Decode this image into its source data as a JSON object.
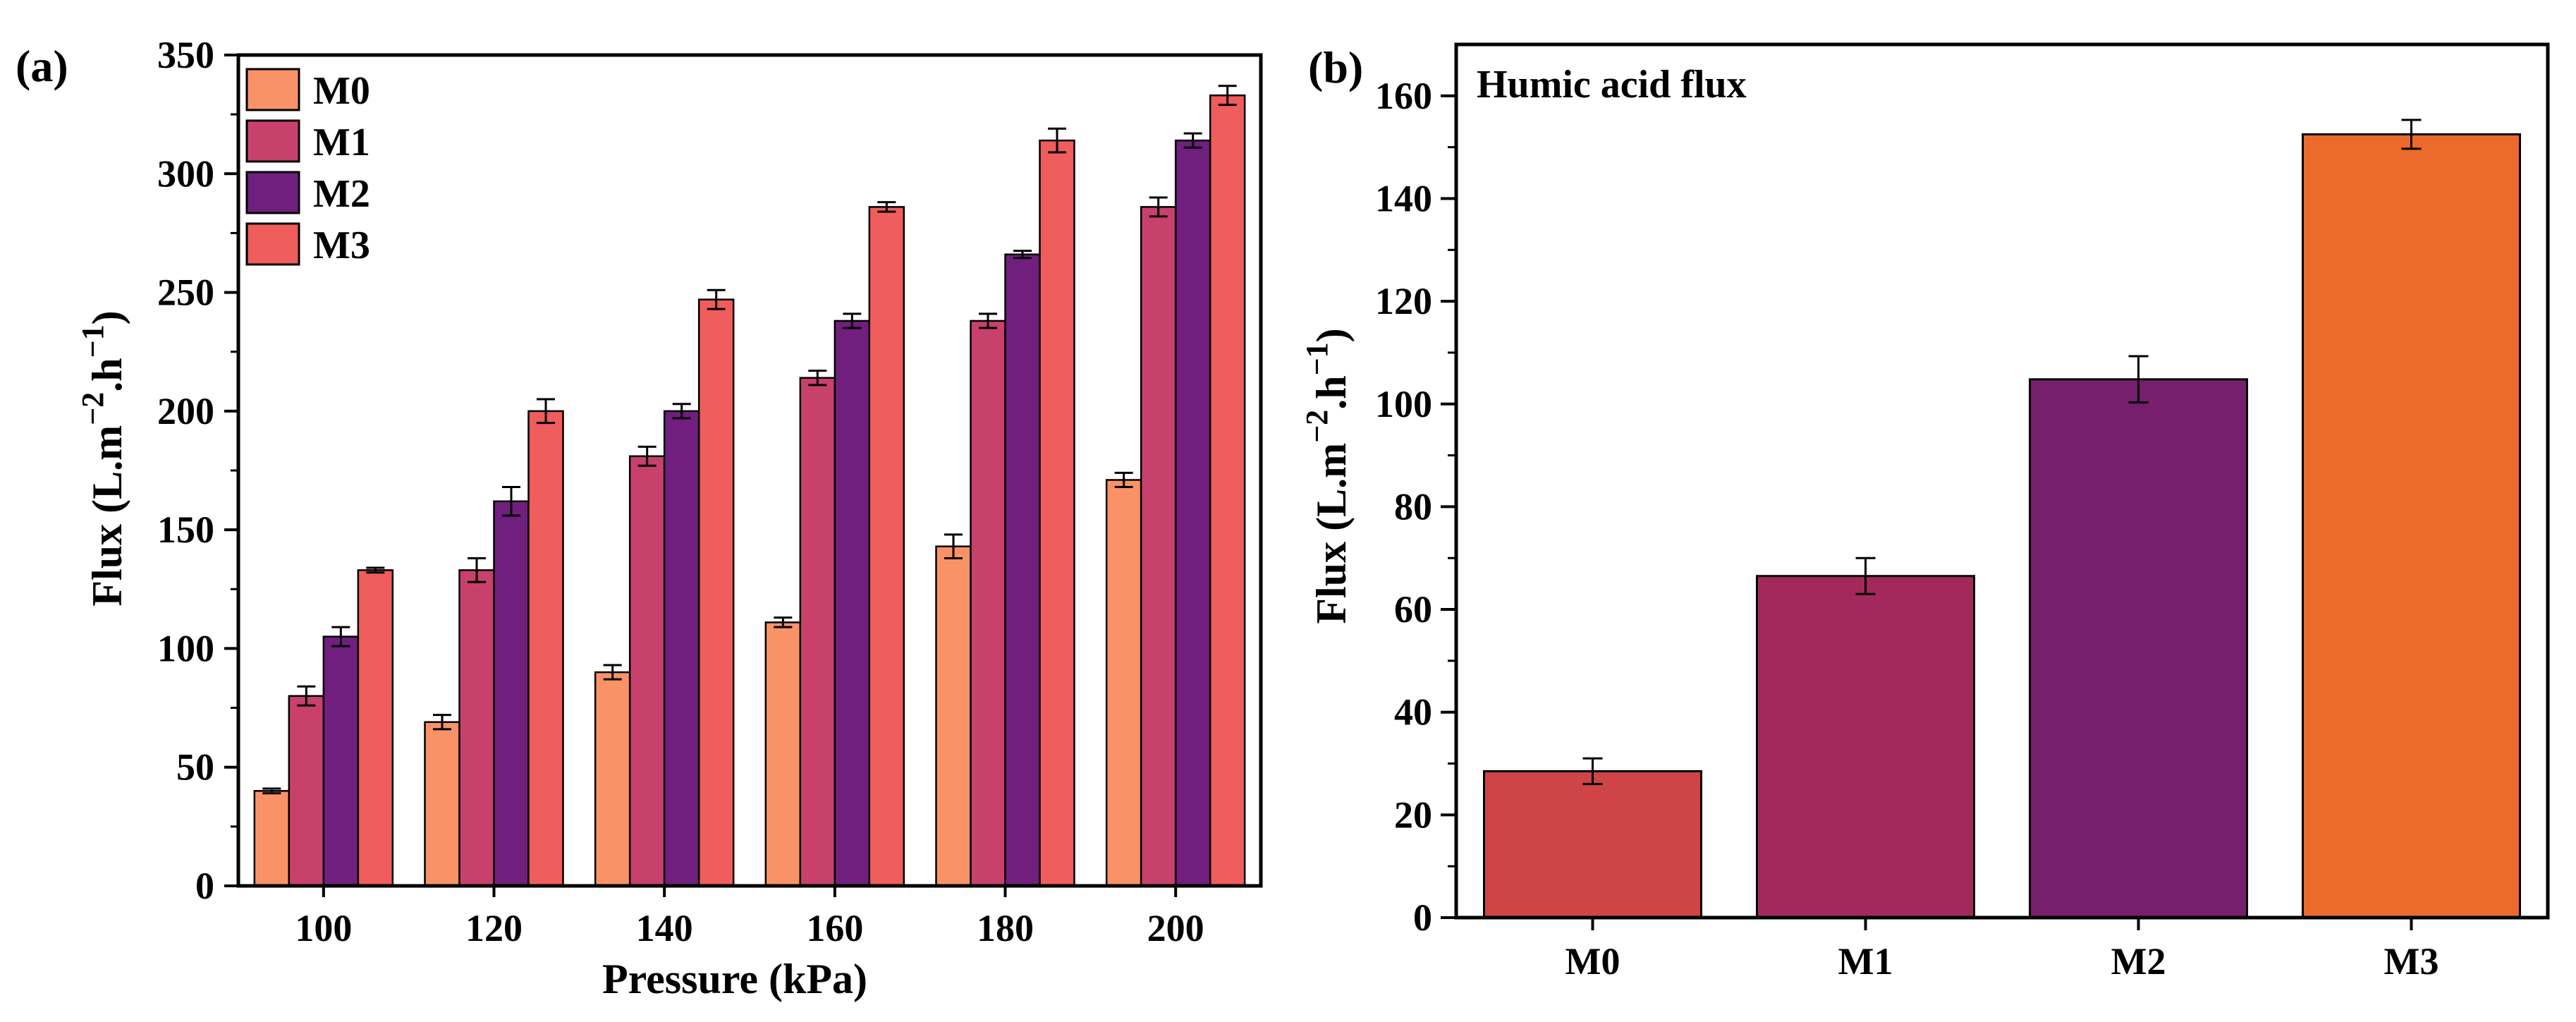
{
  "chart_data": [
    {
      "panel_label": "(a)",
      "type": "bar",
      "categories": [
        "100",
        "120",
        "140",
        "160",
        "180",
        "200"
      ],
      "series": [
        {
          "name": "M0",
          "color": "#F99367",
          "values": [
            40,
            69,
            90,
            111,
            143,
            171
          ],
          "errors": [
            1,
            3,
            3,
            2,
            5,
            3
          ]
        },
        {
          "name": "M1",
          "color": "#C8416D",
          "values": [
            80,
            133,
            181,
            214,
            238,
            286
          ],
          "errors": [
            4,
            5,
            4,
            3,
            3,
            4
          ]
        },
        {
          "name": "M2",
          "color": "#701F7E",
          "values": [
            105,
            162,
            200,
            238,
            266,
            314
          ],
          "errors": [
            4,
            6,
            3,
            3,
            1.5,
            3
          ]
        },
        {
          "name": "M3",
          "color": "#EF5D5C",
          "values": [
            133,
            200,
            247,
            286,
            314,
            333
          ],
          "errors": [
            1,
            5,
            4,
            2,
            5,
            4
          ]
        }
      ],
      "title": "",
      "xlabel": "Pressure (kPa)",
      "ylabel_main": "Flux (L.m",
      "ylabel_sup1": "−2",
      "ylabel_mid": ".h",
      "ylabel_sup2": "−1",
      "ylabel_end": ")",
      "ylim": [
        0,
        350
      ],
      "yticks": [
        "0",
        "50",
        "100",
        "150",
        "200",
        "250",
        "300",
        "350"
      ],
      "legend_position": "top-left",
      "grid": false
    },
    {
      "panel_label": "(b)",
      "type": "bar",
      "categories": [
        "M0",
        "M1",
        "M2",
        "M3"
      ],
      "values": [
        28.5,
        66.5,
        104.8,
        152.5
      ],
      "errors": [
        2.5,
        3.5,
        4.5,
        2.8
      ],
      "colors": [
        "#CF4446",
        "#A3295C",
        "#771E6D",
        "#EC6A2B"
      ],
      "annotation": "Humic acid flux",
      "title": "",
      "xlabel": "",
      "ylabel_main": "Flux (L.m",
      "ylabel_sup1": "−2",
      "ylabel_mid": ".h",
      "ylabel_sup2": "−1",
      "ylabel_end": ")",
      "ylim": [
        0,
        170
      ],
      "yticks": [
        "0",
        "20",
        "40",
        "60",
        "80",
        "100",
        "120",
        "140",
        "160"
      ],
      "grid": false
    }
  ]
}
